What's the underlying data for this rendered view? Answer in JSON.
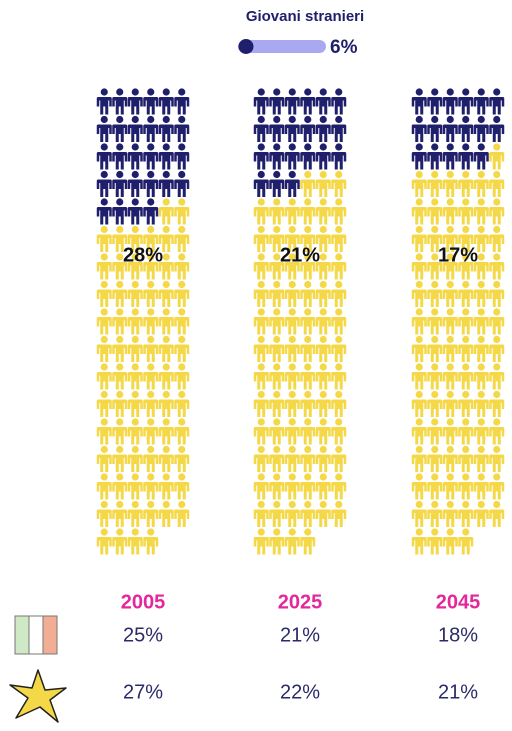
{
  "chart_data": {
    "type": "pictogram",
    "legend": {
      "title": "Giovani stranieri",
      "label": "6%"
    },
    "categories": [
      "2005",
      "2025",
      "2045"
    ],
    "series": [
      {
        "name": "Giovani stranieri",
        "color": "#1f1f6b",
        "values": [
          28,
          21,
          17
        ],
        "value_labels": [
          "28%",
          "21%",
          "17%"
        ]
      }
    ],
    "base_color": "#f4d848",
    "ylim": [
      0,
      100
    ]
  },
  "table": {
    "rows": [
      [
        "25%",
        "21%",
        "18%"
      ],
      [
        "27%",
        "22%",
        "21%"
      ]
    ]
  }
}
